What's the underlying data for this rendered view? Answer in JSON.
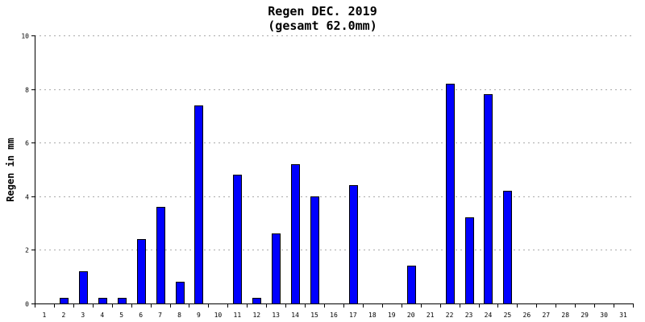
{
  "chart_data": {
    "type": "bar",
    "title": "Regen DEC. 2019",
    "subtitle": "(gesamt 62.0mm)",
    "xlabel": "",
    "ylabel": "Regen in mm",
    "ylim": [
      0,
      10
    ],
    "yticks": [
      "0",
      "2",
      "4",
      "6",
      "8",
      "10"
    ],
    "categories": [
      "1",
      "2",
      "3",
      "4",
      "5",
      "6",
      "7",
      "8",
      "9",
      "10",
      "11",
      "12",
      "13",
      "14",
      "15",
      "16",
      "17",
      "18",
      "19",
      "20",
      "21",
      "22",
      "23",
      "24",
      "25",
      "26",
      "27",
      "28",
      "29",
      "30",
      "31"
    ],
    "values": [
      0,
      0.2,
      1.2,
      0.2,
      0.2,
      2.4,
      3.6,
      0.8,
      7.4,
      0,
      4.8,
      0.2,
      2.6,
      5.2,
      4.0,
      0,
      4.4,
      0,
      0,
      1.4,
      0,
      8.2,
      3.2,
      7.8,
      4.2,
      0,
      0,
      0,
      0,
      0,
      0
    ],
    "grid": true,
    "bar_color": "#0000ff",
    "bar_edge_color": "#000000",
    "grid_color": "#aaaaaa"
  }
}
